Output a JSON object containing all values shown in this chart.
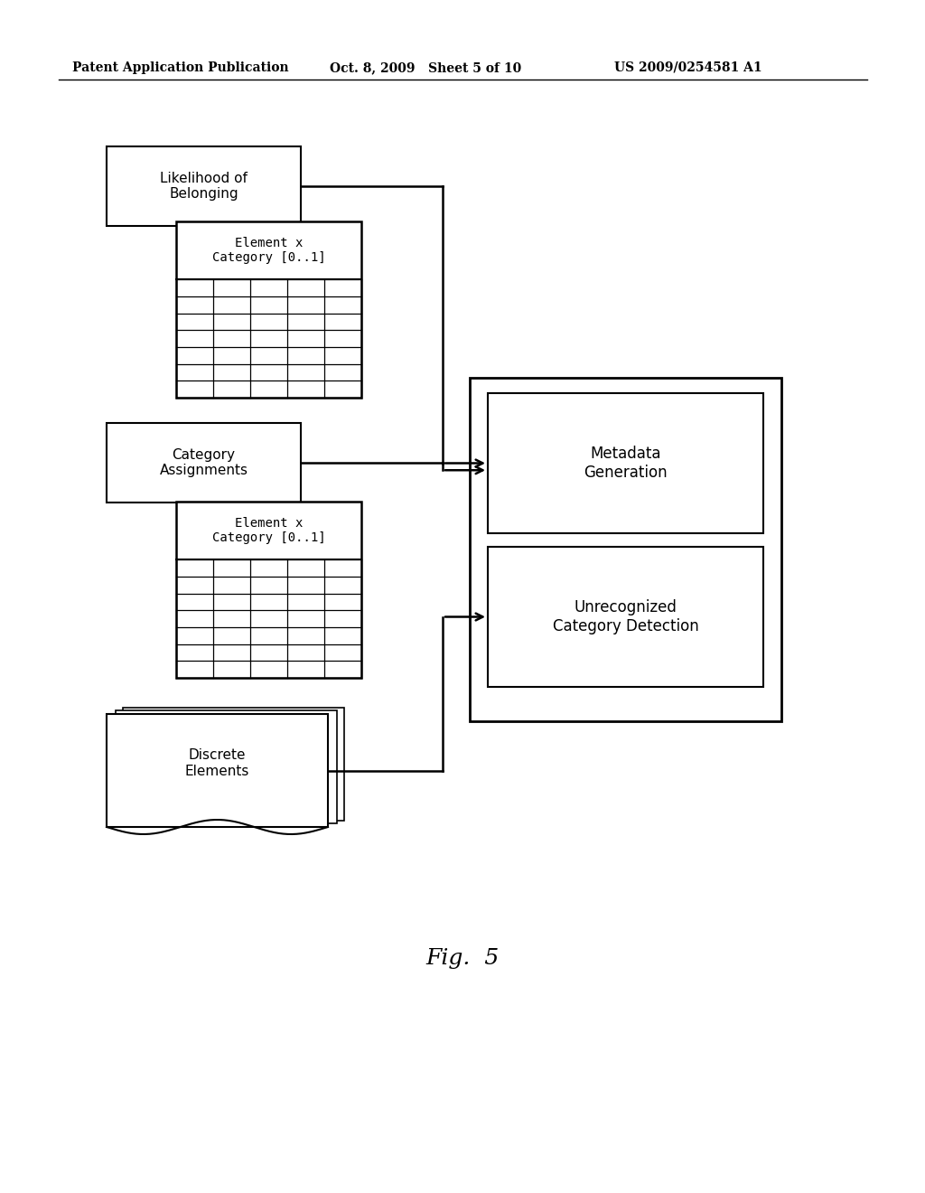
{
  "bg_color": "#ffffff",
  "header_left": "Patent Application Publication",
  "header_mid": "Oct. 8, 2009   Sheet 5 of 10",
  "header_right": "US 2009/0254581 A1",
  "fig_label": "Fig.  5",
  "box1_label": "Likelihood of\nBelonging",
  "box2_label": "Category\nAssignments",
  "box3_label": "Discrete\nElements",
  "grid1_label": "Element x\nCategory [0..1]",
  "grid2_label": "Element x\nCategory [0..1]",
  "meta_label": "Metadata\nGeneration",
  "unrecog_label": "Unrecognized\nCategory Detection",
  "text_color": "#000000",
  "line_color": "#000000"
}
